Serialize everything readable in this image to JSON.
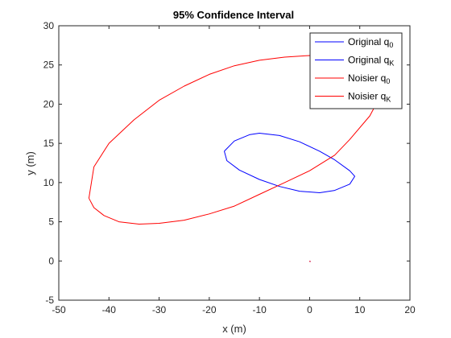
{
  "chart_data": {
    "type": "line",
    "title": "95% Confidence Interval",
    "xlabel": "x (m)",
    "ylabel": "y (m)",
    "xlim": [
      -50,
      20
    ],
    "ylim": [
      -5,
      30
    ],
    "xticks": [
      -50,
      -40,
      -30,
      -20,
      -10,
      0,
      10,
      20
    ],
    "yticks": [
      -5,
      0,
      5,
      10,
      15,
      20,
      25,
      30
    ],
    "grid": false,
    "legend_position": "top-right",
    "colors": {
      "original": "#0000ff",
      "noisier": "#ff0000",
      "axis": "#262626"
    },
    "legend": [
      {
        "base": "Original q",
        "sub": "0",
        "color": "#0000ff"
      },
      {
        "base": "Original q",
        "sub": "K",
        "color": "#0000ff"
      },
      {
        "base": "Noisier q",
        "sub": "0",
        "color": "#ff0000"
      },
      {
        "base": "Noisier q",
        "sub": "K",
        "color": "#ff0000"
      }
    ],
    "series": [
      {
        "name": "Original q",
        "sub": "0",
        "color": "#0000ff",
        "kind": "point",
        "points": [
          [
            0,
            0
          ]
        ]
      },
      {
        "name": "Original q",
        "sub": "K",
        "color": "#0000ff",
        "kind": "ellipse",
        "points": [
          [
            -17.0,
            14.0
          ],
          [
            -15.0,
            15.3
          ],
          [
            -12.0,
            16.1
          ],
          [
            -10.0,
            16.3
          ],
          [
            -6.0,
            16.0
          ],
          [
            -2.0,
            15.2
          ],
          [
            2.0,
            14.0
          ],
          [
            5.0,
            12.9
          ],
          [
            8.0,
            11.5
          ],
          [
            9.0,
            10.8
          ],
          [
            8.0,
            9.8
          ],
          [
            5.0,
            9.0
          ],
          [
            2.0,
            8.7
          ],
          [
            -2.0,
            8.9
          ],
          [
            -6.0,
            9.5
          ],
          [
            -10.0,
            10.4
          ],
          [
            -14.0,
            11.6
          ],
          [
            -16.5,
            12.8
          ],
          [
            -17.0,
            14.0
          ]
        ]
      },
      {
        "name": "Noisier q",
        "sub": "0",
        "color": "#ff0000",
        "kind": "point",
        "points": [
          [
            0,
            0
          ]
        ]
      },
      {
        "name": "Noisier q",
        "sub": "K",
        "color": "#ff0000",
        "kind": "ellipse",
        "points": [
          [
            -44.0,
            8.0
          ],
          [
            -43.0,
            12.0
          ],
          [
            -40.0,
            15.0
          ],
          [
            -35.0,
            18.0
          ],
          [
            -30.0,
            20.5
          ],
          [
            -25.0,
            22.3
          ],
          [
            -20.0,
            23.8
          ],
          [
            -15.0,
            24.9
          ],
          [
            -10.0,
            25.6
          ],
          [
            -5.0,
            26.0
          ],
          [
            0.0,
            26.2
          ],
          [
            5.0,
            26.0
          ],
          [
            9.0,
            25.0
          ],
          [
            12.0,
            23.5
          ],
          [
            14.5,
            21.5
          ],
          [
            12.0,
            18.5
          ],
          [
            8.0,
            15.5
          ],
          [
            5.0,
            13.5
          ],
          [
            0.0,
            11.5
          ],
          [
            -5.0,
            10.0
          ],
          [
            -10.0,
            8.5
          ],
          [
            -15.0,
            7.0
          ],
          [
            -20.0,
            6.0
          ],
          [
            -25.0,
            5.2
          ],
          [
            -30.0,
            4.8
          ],
          [
            -34.0,
            4.7
          ],
          [
            -38.0,
            5.0
          ],
          [
            -41.0,
            5.8
          ],
          [
            -43.0,
            6.8
          ],
          [
            -44.0,
            8.0
          ]
        ]
      }
    ]
  }
}
